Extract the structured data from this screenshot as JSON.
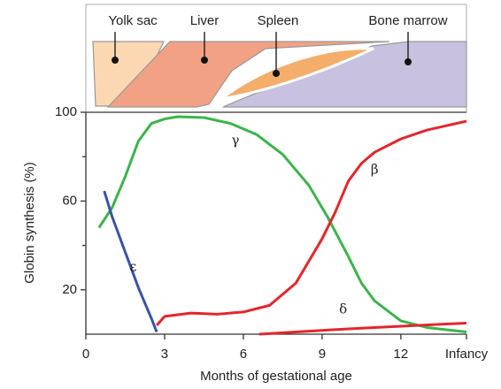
{
  "chart_data": {
    "type": "line",
    "x_label": "Months of gestational age",
    "y_label": "Globin synthesis (%)",
    "xlim": [
      0,
      14.5
    ],
    "ylim": [
      0,
      100
    ],
    "xticks": [
      0,
      3,
      6,
      9,
      12,
      {
        "value": 14.5,
        "label": "Infancy"
      }
    ],
    "yticks": [
      20,
      60,
      100
    ],
    "yminor_ticks": [
      40,
      80
    ],
    "sites": [
      {
        "label": "Yolk sac",
        "color": "#fbd8b2"
      },
      {
        "label": "Liver",
        "color": "#f2a184"
      },
      {
        "label": "Spleen",
        "color": "#f5ad6a"
      },
      {
        "label": "Bone marrow",
        "color": "#c8c2e0"
      }
    ],
    "series": [
      {
        "name": "γ",
        "color": "#3cb44b",
        "x": [
          0.5,
          1,
          1.5,
          2,
          2.5,
          3,
          3.5,
          4.5,
          5.5,
          6.5,
          7.5,
          8.5,
          9.2,
          10,
          10.5,
          11,
          12,
          13,
          14.5
        ],
        "values": [
          48,
          57,
          71,
          87,
          95,
          97,
          98,
          97.6,
          95,
          90,
          81,
          67,
          53,
          35,
          23,
          15,
          6,
          3,
          1
        ]
      },
      {
        "name": "β",
        "color": "#e3262c",
        "x": [
          2.7,
          3,
          4,
          5,
          6,
          7,
          8,
          9,
          9.5,
          10,
          10.5,
          11,
          12,
          13,
          14.5
        ],
        "values": [
          4,
          8,
          9.5,
          9,
          10,
          13,
          23,
          43,
          55,
          69,
          77,
          82,
          88,
          92,
          96
        ]
      },
      {
        "name": "ε",
        "color": "#3a53a3",
        "x": [
          0.7,
          1,
          1.5,
          2,
          2.5,
          2.7
        ],
        "values": [
          64.5,
          53,
          37,
          21,
          7,
          1
        ]
      },
      {
        "name": "δ",
        "color": "#e3262c",
        "x": [
          6.6,
          8,
          10,
          12,
          14.5
        ],
        "values": [
          0,
          1,
          2.4,
          3.6,
          5
        ]
      }
    ]
  }
}
